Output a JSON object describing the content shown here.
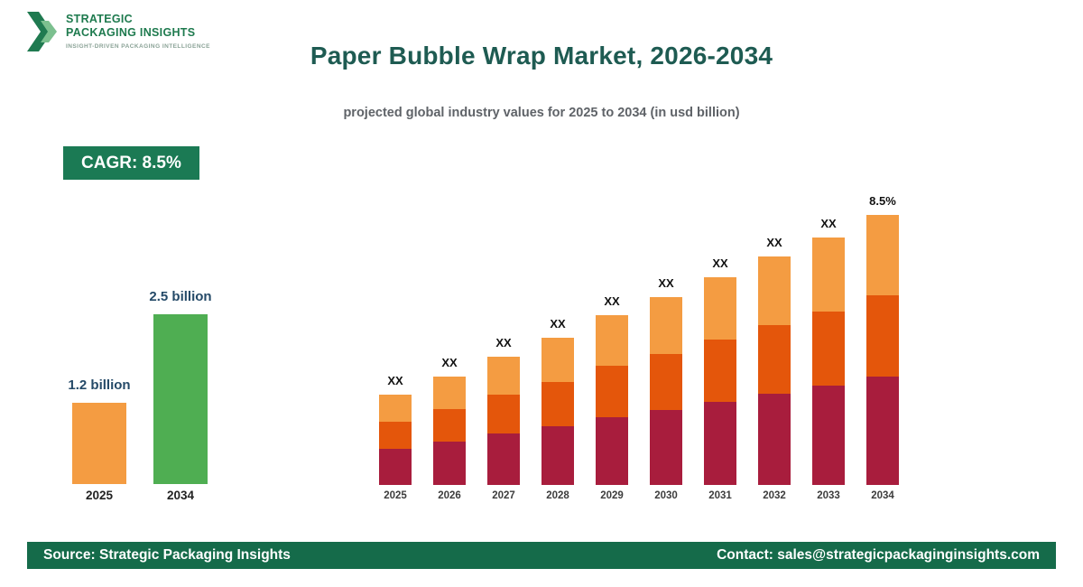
{
  "logo": {
    "line1": "STRATEGIC",
    "line2": "PACKAGING INSIGHTS",
    "tagline": "INSIGHT-DRIVEN PACKAGING INTELLIGENCE"
  },
  "header": {
    "title": "Paper Bubble Wrap Market, 2026-2034",
    "subtitle": "projected global industry values for 2025 to 2034 (in usd billion)"
  },
  "cagr_badge": {
    "label": "CAGR: 8.5%"
  },
  "chart_data": [
    {
      "type": "bar",
      "name": "growth-summary",
      "categories": [
        "2025",
        "2034"
      ],
      "values": [
        1.2,
        2.5
      ],
      "value_labels": [
        "1.2 billion",
        "2.5 billion"
      ],
      "colors": [
        "#F49C42",
        "#4FAE52"
      ],
      "unit": "usd billion"
    },
    {
      "type": "bar",
      "name": "yearly-projection-stacked",
      "stacked": true,
      "categories": [
        "2025",
        "2026",
        "2027",
        "2028",
        "2029",
        "2030",
        "2031",
        "2032",
        "2033",
        "2034"
      ],
      "bar_labels": [
        "XX",
        "XX",
        "XX",
        "XX",
        "XX",
        "XX",
        "XX",
        "XX",
        "XX",
        "8.5%"
      ],
      "series": [
        {
          "name": "segment-bottom",
          "color": "#A81D3D",
          "values": [
            40,
            48,
            57,
            65,
            75,
            83,
            92,
            101,
            110,
            120
          ]
        },
        {
          "name": "segment-middle",
          "color": "#E4560B",
          "values": [
            30,
            36,
            43,
            49,
            57,
            62,
            69,
            76,
            82,
            90
          ]
        },
        {
          "name": "segment-top",
          "color": "#F49C42",
          "values": [
            30,
            36,
            42,
            49,
            56,
            63,
            69,
            76,
            82,
            89
          ]
        }
      ],
      "units": "relative heights (data labels masked as XX in source)"
    }
  ],
  "footer": {
    "source": "Source: Strategic Packaging Insights",
    "contact": "Contact: sales@strategicpackaginginsights.com"
  },
  "colors": {
    "accent_green": "#1B7A54",
    "footer_green": "#156B4A",
    "title_teal": "#1E5B52",
    "logo_green": "#1E7A4E"
  }
}
